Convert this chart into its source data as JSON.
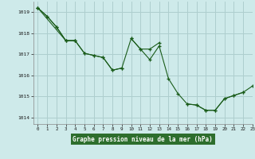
{
  "title": "Graphe pression niveau de la mer (hPa)",
  "background_color": "#ceeaea",
  "grid_color": "#aecece",
  "line_color": "#1a5c1a",
  "xlim": [
    -0.5,
    23
  ],
  "ylim": [
    1013.7,
    1019.5
  ],
  "yticks": [
    1014,
    1015,
    1016,
    1017,
    1018,
    1019
  ],
  "xticks": [
    0,
    1,
    2,
    3,
    4,
    5,
    6,
    7,
    8,
    9,
    10,
    11,
    12,
    13,
    14,
    15,
    16,
    17,
    18,
    19,
    20,
    21,
    22,
    23
  ],
  "title_bg": "#2d6e2d",
  "title_fg": "#ffffff",
  "series1": [
    1019.2,
    1018.8,
    1018.3,
    1017.65,
    1017.65,
    1017.05,
    1016.95,
    1016.85,
    1016.25,
    1016.35,
    1017.75,
    1017.25,
    1016.75,
    1017.4,
    1015.85,
    1015.15,
    1014.65,
    1014.6,
    1014.35,
    1014.35,
    1014.9,
    1015.05,
    1015.2,
    1015.5
  ],
  "series2_x": [
    0,
    1,
    2,
    3,
    4,
    5,
    6,
    7,
    8,
    9
  ],
  "series2_y": [
    1019.2,
    1018.8,
    1018.3,
    1017.65,
    1017.65,
    1017.05,
    1016.95,
    1016.85,
    1016.25,
    1016.35
  ],
  "series3_segments": [
    {
      "x": [
        0,
        3,
        4
      ],
      "y": [
        1019.2,
        1017.65,
        1017.65
      ]
    },
    {
      "x": [
        10,
        11,
        12,
        13
      ],
      "y": [
        1017.75,
        1017.25,
        1017.25,
        1017.55
      ]
    },
    {
      "x": [
        16,
        17,
        18,
        19,
        20,
        21,
        22
      ],
      "y": [
        1014.65,
        1014.6,
        1014.35,
        1014.35,
        1014.9,
        1015.05,
        1015.2
      ]
    }
  ]
}
